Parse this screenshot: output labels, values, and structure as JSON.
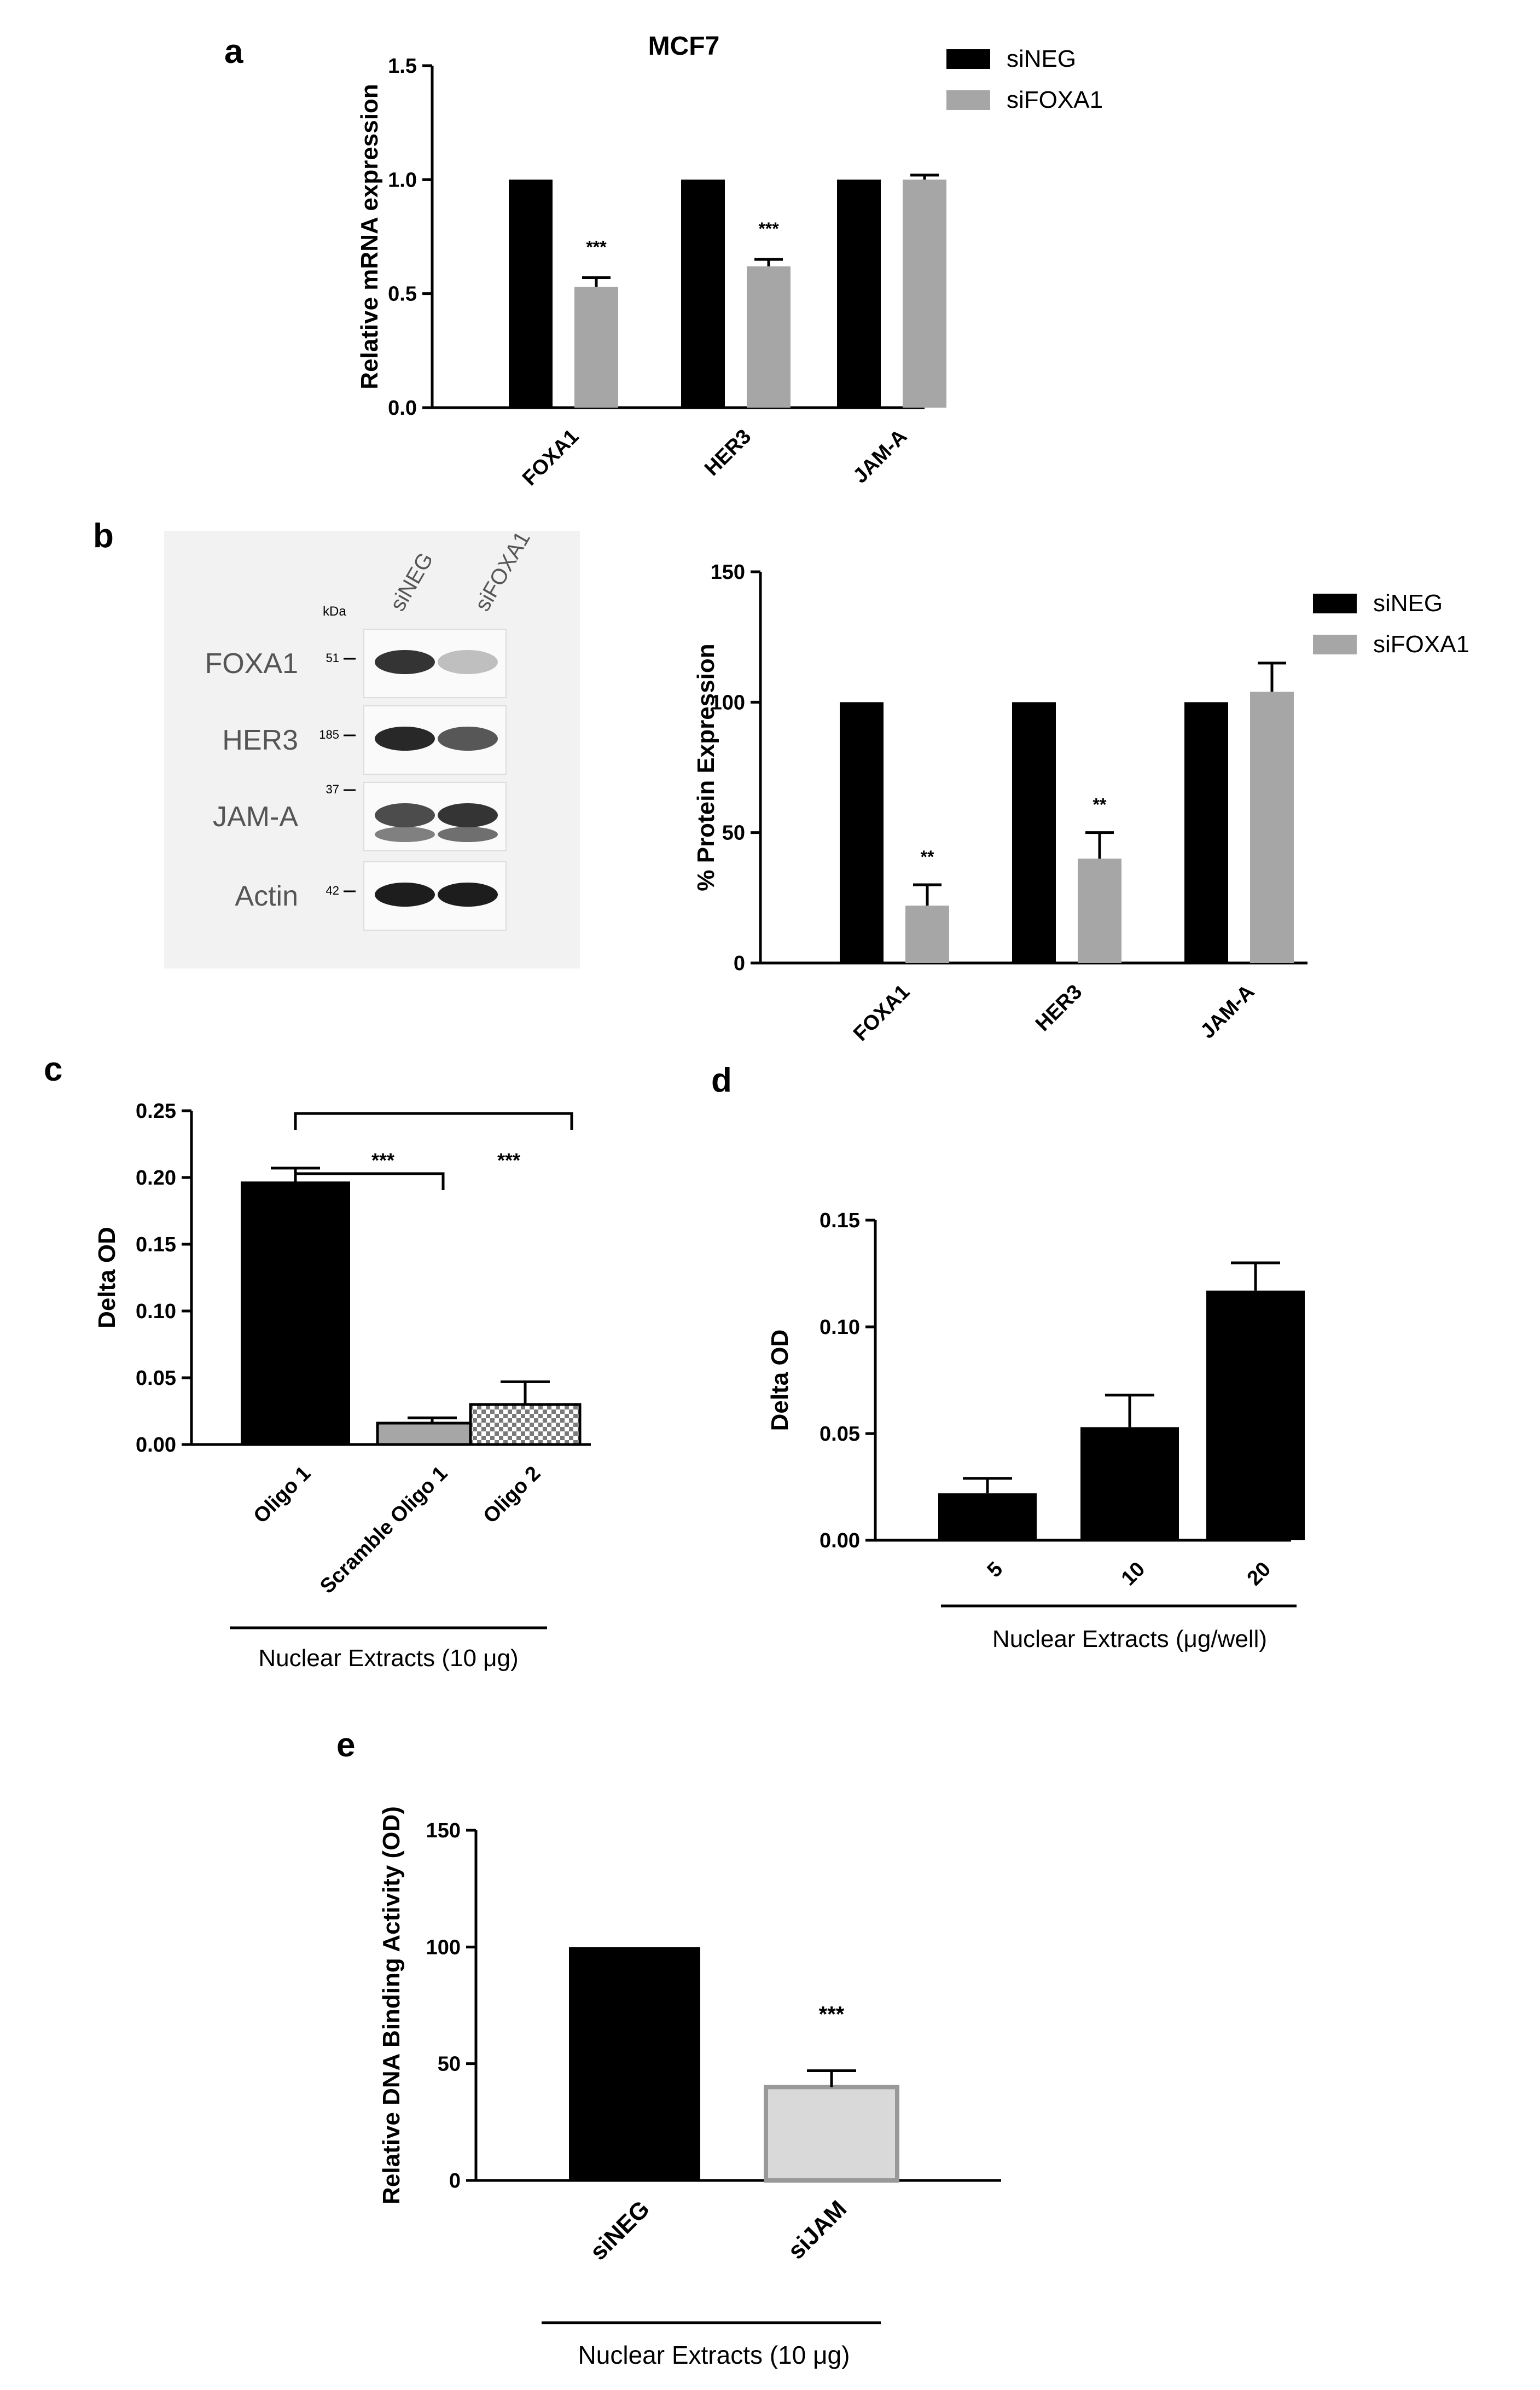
{
  "colors": {
    "black": "#000000",
    "gray": "#a6a6a6",
    "lightgray": "#d9d9d9",
    "blotbg": "#f2f2f2"
  },
  "panels": {
    "a": {
      "letter": "a",
      "title": "MCF7",
      "sig": [
        "***",
        "***",
        ""
      ]
    },
    "b": {
      "letter": "b",
      "sig": [
        "**",
        "**",
        ""
      ]
    },
    "c": {
      "letter": "c",
      "sig": [
        "***",
        "***"
      ]
    },
    "d": {
      "letter": "d"
    },
    "e": {
      "letter": "e",
      "sig": "***"
    }
  },
  "blot": {
    "kda_label": "kDa",
    "lanes": [
      "siNEG",
      "siFOXA1"
    ],
    "rows": [
      {
        "name": "FOXA1",
        "kda": "51"
      },
      {
        "name": "HER3",
        "kda": "185"
      },
      {
        "name": "JAM-A",
        "kda": "37"
      },
      {
        "name": "Actin",
        "kda": "42"
      }
    ]
  },
  "chart_data": [
    {
      "panel": "a",
      "type": "bar",
      "title": "MCF7",
      "ylabel": "Relative mRNA expression",
      "categories": [
        "FOXA1",
        "HER3",
        "JAM-A"
      ],
      "series": [
        {
          "name": "siNEG",
          "color": "#000000",
          "values": [
            1.0,
            1.0,
            1.0
          ],
          "errors": [
            0,
            0,
            0
          ]
        },
        {
          "name": "siFOXA1",
          "color": "#a6a6a6",
          "values": [
            0.53,
            0.62,
            1.0
          ],
          "errors": [
            0.04,
            0.03,
            0.02
          ]
        }
      ],
      "ylim": [
        0,
        1.5
      ],
      "yticks": [
        "0.0",
        "0.5",
        "1.0",
        "1.5"
      ],
      "legend": "top-right"
    },
    {
      "panel": "b",
      "type": "bar",
      "ylabel": "% Protein Expression",
      "categories": [
        "FOXA1",
        "HER3",
        "JAM-A"
      ],
      "series": [
        {
          "name": "siNEG",
          "color": "#000000",
          "values": [
            100,
            100,
            100
          ],
          "errors": [
            0,
            0,
            0
          ]
        },
        {
          "name": "siFOXA1",
          "color": "#a6a6a6",
          "values": [
            22,
            40,
            104
          ],
          "errors": [
            8,
            10,
            11
          ]
        }
      ],
      "ylim": [
        0,
        150
      ],
      "yticks": [
        "0",
        "50",
        "100",
        "150"
      ],
      "legend": "top-right"
    },
    {
      "panel": "c",
      "type": "bar",
      "ylabel": "Delta OD",
      "categories": [
        "Oligo 1",
        "Scramble Oligo 1",
        "Oligo 2"
      ],
      "values": [
        0.197,
        0.016,
        0.03
      ],
      "errors": [
        0.01,
        0.004,
        0.017
      ],
      "fills": [
        "#000000",
        "#a6a6a6",
        "checker"
      ],
      "ylim": [
        0,
        0.25
      ],
      "yticks": [
        "0.00",
        "0.05",
        "0.10",
        "0.15",
        "0.20",
        "0.25"
      ],
      "group_label": "Nuclear Extracts (10 μg)"
    },
    {
      "panel": "d",
      "type": "bar",
      "ylabel": "Delta OD",
      "categories": [
        "5",
        "10",
        "20"
      ],
      "values": [
        0.022,
        0.053,
        0.117
      ],
      "errors": [
        0.007,
        0.015,
        0.013
      ],
      "ylim": [
        0,
        0.15
      ],
      "yticks": [
        "0.00",
        "0.05",
        "0.10",
        "0.15"
      ],
      "group_label": "Nuclear Extracts (μg/well)"
    },
    {
      "panel": "e",
      "type": "bar",
      "ylabel": "Relative DNA Binding Activity (OD)",
      "categories": [
        "siNEG",
        "siJAM"
      ],
      "values": [
        100,
        40
      ],
      "errors": [
        0,
        7
      ],
      "ylim": [
        0,
        150
      ],
      "yticks": [
        "0",
        "50",
        "100",
        "150"
      ],
      "group_label": "Nuclear Extracts (10 μg)"
    }
  ]
}
